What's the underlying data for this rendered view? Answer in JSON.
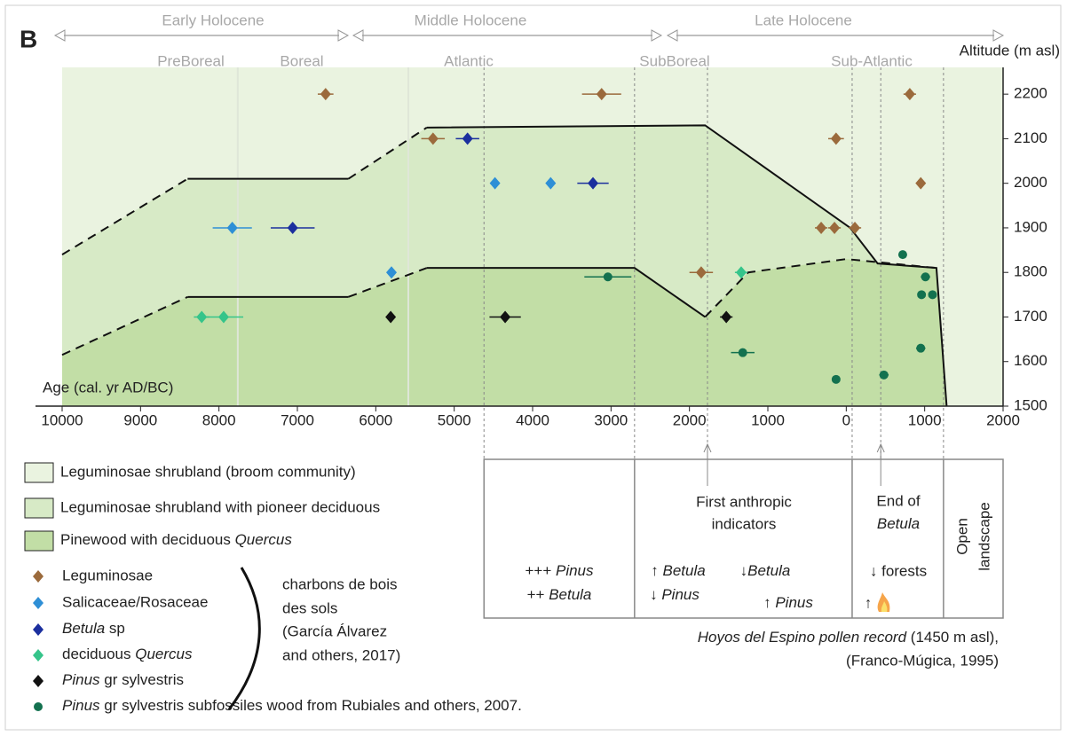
{
  "panel": "B",
  "chart_data": {
    "type": "scatter",
    "x_label": "Age (cal. yr AD/BC)",
    "y_label": "Altitude (m asl)",
    "xlim": [
      -10000,
      2000
    ],
    "ylim": [
      1500,
      2260
    ],
    "xticks": [
      {
        "value": -10000,
        "label": "10000"
      },
      {
        "value": -9000,
        "label": "9000"
      },
      {
        "value": -8000,
        "label": "8000"
      },
      {
        "value": -7000,
        "label": "7000"
      },
      {
        "value": -6000,
        "label": "6000"
      },
      {
        "value": -5000,
        "label": "5000"
      },
      {
        "value": -4000,
        "label": "4000"
      },
      {
        "value": -3000,
        "label": "3000"
      },
      {
        "value": -2000,
        "label": "2000"
      },
      {
        "value": -1000,
        "label": "1000"
      },
      0,
      1000,
      2000
    ],
    "yticks": [
      1500,
      1600,
      1700,
      1800,
      1900,
      2000,
      2100,
      2200
    ],
    "periods": [
      "Early Holocene",
      "Middle Holocene",
      "Late Holocene"
    ],
    "subperiods": [
      "PreBoreal",
      "Boreal",
      "Atlantic",
      "SubBoreal",
      "Sub-Atlantic"
    ],
    "regions": [
      {
        "name": "Leguminosae shrubland (broom community)",
        "color": "#eaf3e0"
      },
      {
        "name": "Leguminosae shrubland with pioneer deciduous",
        "color": "#d7eac6"
      },
      {
        "name": "Pinewood with deciduous Quercus",
        "italic": "Quercus",
        "color": "#c2dea6"
      }
    ],
    "boundaries": [
      {
        "segments": [
          {
            "style": "dashed",
            "x": [
              -10000,
              -8400
            ],
            "y": [
              1840,
              2010
            ]
          },
          {
            "style": "solid",
            "x": [
              -8400,
              -6350
            ],
            "y": [
              2010,
              2010
            ]
          },
          {
            "style": "dashed",
            "x": [
              -6350,
              -5350
            ],
            "y": [
              2010,
              2125
            ]
          },
          {
            "style": "solid",
            "x": [
              -5350,
              -1800,
              50,
              400,
              1150,
              1280
            ],
            "y": [
              2125,
              2130,
              1900,
              1820,
              1810,
              1500
            ]
          }
        ]
      },
      {
        "segments": [
          {
            "style": "dashed",
            "x": [
              -10000,
              -8400
            ],
            "y": [
              1615,
              1745
            ]
          },
          {
            "style": "solid",
            "x": [
              -8400,
              -6350
            ],
            "y": [
              1745,
              1745
            ]
          },
          {
            "style": "dashed",
            "x": [
              -6350,
              -5350
            ],
            "y": [
              1745,
              1810
            ]
          },
          {
            "style": "solid",
            "x": [
              -5350,
              -2700,
              -1800
            ],
            "y": [
              1810,
              1810,
              1700
            ]
          },
          {
            "style": "dashed",
            "x": [
              -1800,
              -1250,
              0,
              1150
            ],
            "y": [
              1700,
              1800,
              1830,
              1810
            ]
          }
        ]
      }
    ],
    "dividers": [
      -4620,
      -2700,
      -1770,
      75,
      440,
      1240
    ],
    "faint_lines": [
      -7760,
      -5585
    ],
    "series": [
      {
        "name": "Leguminosae",
        "color": "#9b6a3c",
        "marker": "diamond",
        "x": [
          -6640,
          -3120,
          810,
          -5270,
          -130,
          950,
          -320,
          -150,
          110,
          -1850
        ],
        "xerr": [
          100,
          250,
          80,
          150,
          100,
          40,
          80,
          80,
          80,
          150
        ],
        "values": [
          2200,
          2200,
          2200,
          2100,
          2100,
          2000,
          1900,
          1900,
          1900,
          1800
        ]
      },
      {
        "name": "Salicaceae/Rosaceae",
        "color": "#2e8fd6",
        "marker": "diamond",
        "x": [
          -7830,
          -4480,
          -3770,
          -5800
        ],
        "xerr": [
          250,
          60,
          60,
          60
        ],
        "values": [
          1900,
          2000,
          2000,
          1800
        ]
      },
      {
        "name": "Betula sp",
        "italic": "Betula",
        "color": "#1b2f9e",
        "marker": "diamond",
        "x": [
          -7060,
          -4830,
          -3230
        ],
        "xerr": [
          280,
          150,
          200
        ],
        "values": [
          1900,
          2100,
          2000
        ]
      },
      {
        "name": "deciduous Quercus",
        "italic": "Quercus",
        "color": "#35c48a",
        "marker": "diamond",
        "x": [
          -8220,
          -7940,
          -1340
        ],
        "xerr": [
          100,
          250,
          80
        ],
        "values": [
          1700,
          1700,
          1800
        ]
      },
      {
        "name": "Pinus gr sylvestris",
        "italic": "Pinus",
        "color": "#111111",
        "marker": "diamond",
        "x": [
          -5810,
          -4350,
          -1530
        ],
        "xerr": [
          50,
          200,
          80
        ],
        "values": [
          1700,
          1700,
          1700
        ]
      },
      {
        "name": "Pinus gr sylvestris subfossiles wood from Rubiales and others, 2007.",
        "italic": "Pinus",
        "color": "#13714f",
        "marker": "circle",
        "x": [
          -3040,
          720,
          1010,
          960,
          1100,
          950,
          -1320,
          -130,
          480
        ],
        "xerr": [
          300,
          0,
          60,
          0,
          0,
          60,
          150,
          0,
          60
        ],
        "values": [
          1790,
          1840,
          1790,
          1750,
          1750,
          1630,
          1620,
          1560,
          1570
        ]
      }
    ]
  },
  "legend_group": {
    "lines": [
      "charbons de bois",
      "des sols",
      "(García Álvarez",
      "and others, 2017)"
    ]
  },
  "pollen_record": {
    "columns": [
      {
        "lines": [
          {
            "text": "+++ Pinus",
            "italic": "Pinus"
          },
          {
            "text": "++ Betula",
            "italic": "Betula"
          }
        ]
      },
      {
        "header": [
          {
            "text": "First anthropic"
          },
          {
            "text": "indicators"
          }
        ],
        "lines": [
          {
            "text": "↑ Betula",
            "italic": "Betula"
          },
          {
            "text": "↓Betula",
            "italic": "Betula"
          },
          {
            "text": "↓ Pinus",
            "italic": "Pinus"
          },
          {
            "text": "↑ Pinus",
            "italic": "Pinus"
          }
        ]
      },
      {
        "header": [
          {
            "text": "End of"
          },
          {
            "text": "Betula",
            "italic": "Betula"
          }
        ],
        "lines": [
          {
            "text": "↓ forests"
          },
          {
            "text": "↑"
          }
        ]
      },
      {
        "header": [
          {
            "text": "Open"
          },
          {
            "text": "landscape"
          }
        ]
      }
    ],
    "caption": [
      {
        "text": "Hoyos del Espino pollen record (1450 m asl),",
        "italic": "Hoyos del Espino pollen record"
      },
      {
        "text": "(Franco-Múgica, 1995)"
      }
    ]
  }
}
